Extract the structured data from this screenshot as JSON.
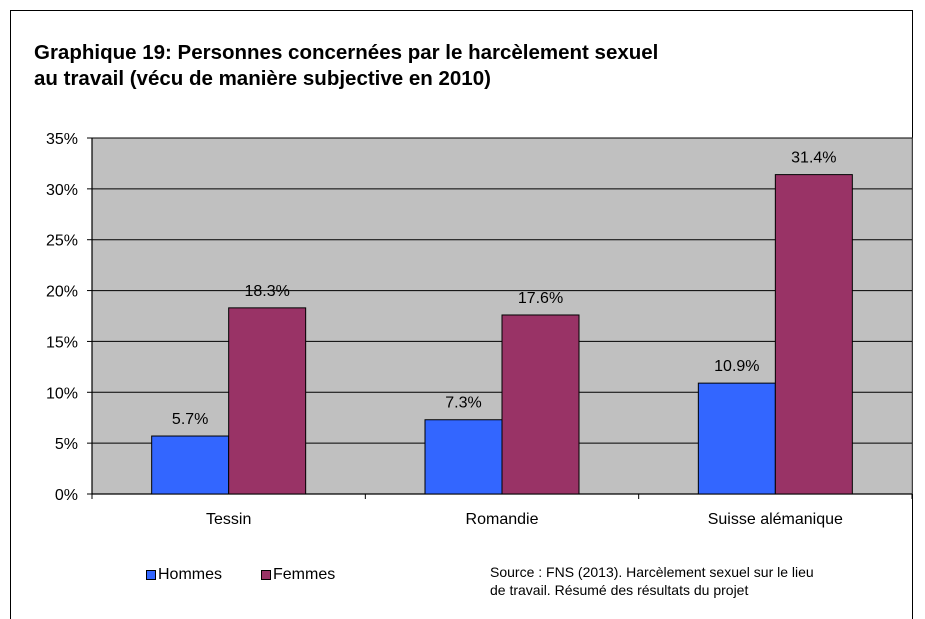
{
  "chart_data": {
    "type": "bar",
    "title_line1": "Graphique 19: Personnes concernées par le harcèlement sexuel",
    "title_line2": "au travail (vécu de manière subjective en 2010)",
    "categories": [
      "Tessin",
      "Romandie",
      "Suisse alémanique"
    ],
    "series": [
      {
        "name": "Hommes",
        "color": "#3366ff",
        "values": [
          5.7,
          7.3,
          10.9
        ],
        "labels": [
          "5.7%",
          "7.3%",
          "10.9%"
        ]
      },
      {
        "name": "Femmes",
        "color": "#993366",
        "values": [
          18.3,
          17.6,
          31.4
        ],
        "labels": [
          "18.3%",
          "17.6%",
          "31.4%"
        ]
      }
    ],
    "ylim": [
      0,
      35
    ],
    "yticks": [
      "0%",
      "5%",
      "10%",
      "15%",
      "20%",
      "25%",
      "30%",
      "35%"
    ],
    "grid": true,
    "plot_background": "#c0c0c0",
    "legend_position": "bottom-left",
    "source_line1": "Source : FNS (2013). Harcèlement sexuel sur le lieu",
    "source_line2": "de travail.  Résumé des résultats du projet"
  }
}
